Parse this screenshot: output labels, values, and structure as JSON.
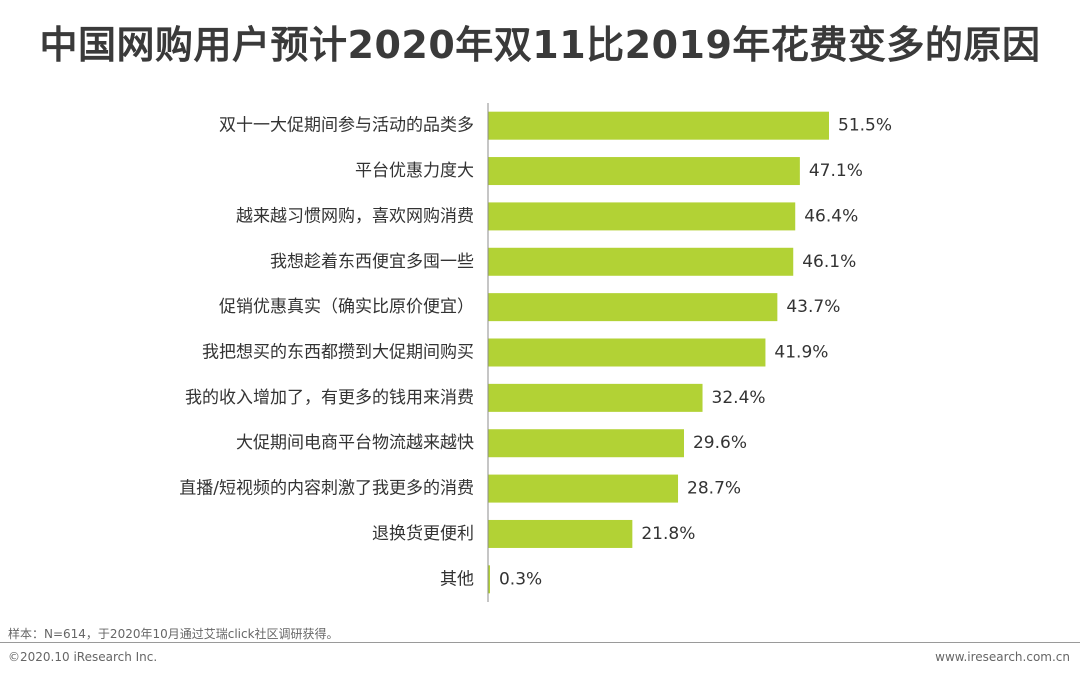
{
  "chart_data": {
    "type": "bar",
    "orientation": "horizontal",
    "title": "中国网购用户预计2020年双11比2019年花费变多的原因",
    "categories": [
      "双十一大促期间参与活动的品类多",
      "平台优惠力度大",
      "越来越习惯网购，喜欢网购消费",
      "我想趁着东西便宜多囤一些",
      "促销优惠真实（确实比原价便宜）",
      "我把想买的东西都攒到大促期间购买",
      "我的收入增加了，有更多的钱用来消费",
      "大促期间电商平台物流越来越快",
      "直播/短视频的内容刺激了我更多的消费",
      "退换货更便利",
      "其他"
    ],
    "values": [
      51.5,
      47.1,
      46.4,
      46.1,
      43.7,
      41.9,
      32.4,
      29.6,
      28.7,
      21.8,
      0.3
    ],
    "value_labels": [
      "51.5%",
      "47.1%",
      "46.4%",
      "46.1%",
      "43.7%",
      "41.9%",
      "32.4%",
      "29.6%",
      "28.7%",
      "21.8%",
      "0.3%"
    ],
    "unit": "%",
    "xlim": [
      0,
      60
    ],
    "bar_color": "#b2d235",
    "grid": false,
    "legend": "none"
  },
  "note": "样本：N=614，于2020年10月通过艾瑞click社区调研获得。",
  "footer": {
    "copyright": "©2020.10 iResearch Inc.",
    "website": "www.iresearch.com.cn"
  }
}
